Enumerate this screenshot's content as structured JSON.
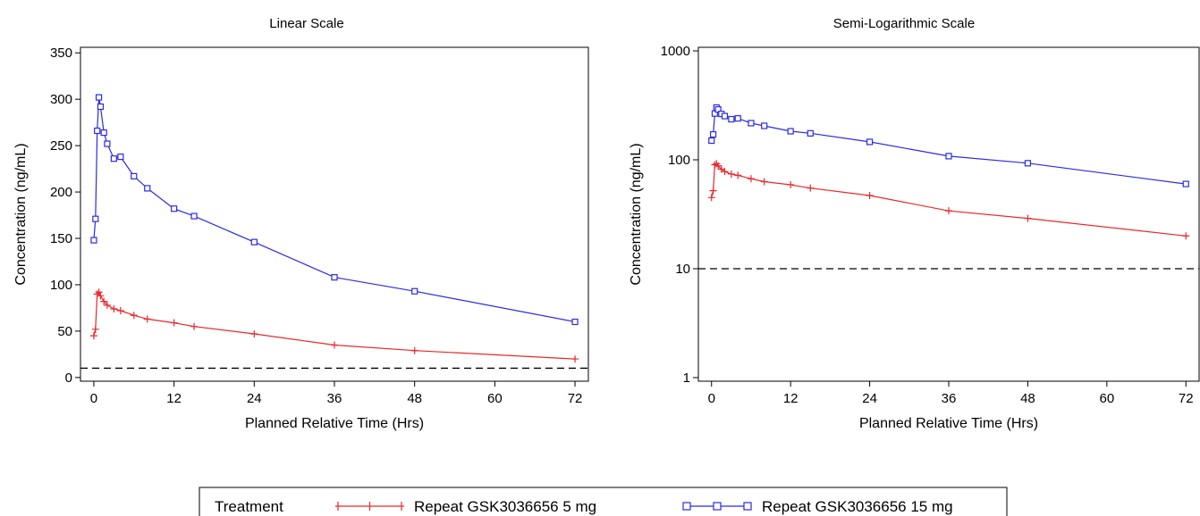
{
  "chart_data": [
    {
      "type": "line",
      "title": "Linear Scale",
      "xlabel": "Planned Relative Time (Hrs)",
      "ylabel": "Concentration (ng/mL)",
      "xlim": [
        -2,
        74
      ],
      "ylim": [
        -4,
        356
      ],
      "xscale": "linear",
      "yscale": "linear",
      "xticks": [
        0,
        12,
        24,
        36,
        48,
        60,
        72
      ],
      "yticks": [
        0,
        50,
        100,
        150,
        200,
        250,
        300,
        350
      ],
      "xtick_labels": [
        "0",
        "12",
        "24",
        "36",
        "48",
        "60",
        "72"
      ],
      "ytick_labels": [
        "0",
        "50",
        "100",
        "150",
        "200",
        "250",
        "300",
        "350"
      ],
      "reference_line": 10,
      "grid": false,
      "series": [
        {
          "name": "Repeat GSK3036656 5 mg",
          "color": "#e8282a",
          "marker": "plus",
          "x": [
            0,
            0.25,
            0.5,
            0.75,
            1,
            1.5,
            2,
            3,
            4,
            6,
            8,
            12,
            15,
            24,
            36,
            48,
            72
          ],
          "y": [
            45,
            52,
            90,
            92,
            88,
            82,
            78,
            74,
            72,
            67,
            63,
            59,
            55,
            47,
            35,
            29,
            20
          ]
        },
        {
          "name": "Repeat GSK3036656 15 mg",
          "color": "#2a2ae6",
          "marker": "square",
          "x": [
            0,
            0.25,
            0.5,
            0.75,
            1,
            1.5,
            2,
            3,
            4,
            6,
            8,
            12,
            15,
            24,
            36,
            48,
            72
          ],
          "y": [
            148,
            171,
            266,
            302,
            292,
            264,
            252,
            236,
            238,
            217,
            204,
            182,
            174,
            146,
            108,
            93,
            60
          ]
        }
      ]
    },
    {
      "type": "line",
      "title": "Semi-Logarithmic Scale",
      "xlabel": "Planned Relative Time (Hrs)",
      "ylabel": "Concentration (ng/mL)",
      "xlim": [
        -2,
        74
      ],
      "ylim": [
        1,
        1000
      ],
      "xscale": "linear",
      "yscale": "log",
      "xticks": [
        0,
        12,
        24,
        36,
        48,
        60,
        72
      ],
      "yticks": [
        1,
        10,
        100,
        1000
      ],
      "xtick_labels": [
        "0",
        "12",
        "24",
        "36",
        "48",
        "60",
        "72"
      ],
      "ytick_labels": [
        "1",
        "10",
        "100",
        "1000"
      ],
      "reference_line": 10,
      "grid": false,
      "series": [
        {
          "name": "Repeat GSK3036656 5 mg",
          "color": "#e8282a",
          "marker": "plus",
          "x": [
            0,
            0.25,
            0.5,
            0.75,
            1,
            1.5,
            2,
            3,
            4,
            6,
            8,
            12,
            15,
            24,
            36,
            48,
            72
          ],
          "y": [
            45,
            52,
            90,
            92,
            88,
            82,
            78,
            74,
            72,
            67,
            63,
            59,
            55,
            47,
            34,
            29,
            20
          ]
        },
        {
          "name": "Repeat GSK3036656 15 mg",
          "color": "#2a2ae6",
          "marker": "square",
          "x": [
            0,
            0.25,
            0.5,
            0.75,
            1,
            1.5,
            2,
            3,
            4,
            6,
            8,
            12,
            15,
            24,
            36,
            48,
            72
          ],
          "y": [
            150,
            171,
            266,
            302,
            290,
            264,
            252,
            236,
            240,
            217,
            205,
            183,
            175,
            146,
            108,
            93,
            60
          ]
        }
      ]
    }
  ],
  "legend": {
    "title": "Treatment",
    "placement": "bottom-center",
    "entries": [
      {
        "label": "Repeat GSK3036656 5 mg",
        "color": "#e8282a",
        "marker": "plus"
      },
      {
        "label": "Repeat GSK3036656 15 mg",
        "color": "#2a2ae6",
        "marker": "square"
      }
    ]
  }
}
